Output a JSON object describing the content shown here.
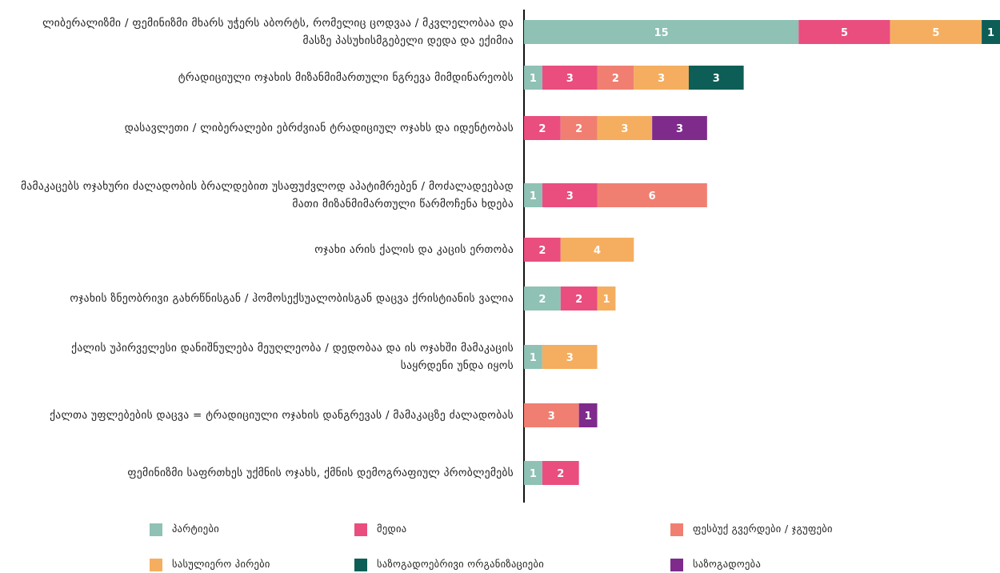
{
  "chart_data": {
    "type": "stacked-bar-horizontal",
    "categories": [
      "ლიბერალიზმი / ფემინიზმი მხარს უჭერს აბორტს, რომელიც ცოდვაა / მკვლელობაა და მასზე პასუხისმგებელი დედა და ექიმია",
      "ტრადიციული ოჯახის მიზანმიმართული ნგრევა მიმდინარეობს",
      "დასავლეთი / ლიბერალები ებრძვიან ტრადიციულ ოჯახს და იდენტობას",
      "მამაკაცებს ოჯახური ძალადობის ბრალდებით უსაფუძვლოდ აპატიმრებენ / მოძალადეებად მათი მიზანმიმართული წარმოჩენა ხდება",
      "ოჯახი არის ქალის და კაცის ერთობა",
      "ოჯახის ზნეობრივი გახრწნისგან / ჰომოსექსუალობისგან დაცვა ქრისტიანის ვალია",
      "ქალის უპირველესი დანიშნულება მეუღლეობა / დედობაა და ის ოჯახში მამაკაცის საყრდენი უნდა იყოს",
      "ქალთა უფლებების დაცვა = ტრადიციული ოჯახის დანგრევას / მამაკაცზე ძალადობას",
      "ფემინიზმი საფრთხეს უქმნის ოჯახს, ქმნის დემოგრაფიულ პრობლემებს"
    ],
    "series": [
      {
        "name": "პარტიები",
        "color": "#8fc1b5",
        "values": [
          15,
          1,
          null,
          1,
          null,
          2,
          1,
          null,
          1
        ]
      },
      {
        "name": "მედია",
        "color": "#e94e7f",
        "values": [
          5,
          3,
          2,
          3,
          2,
          2,
          null,
          null,
          2
        ]
      },
      {
        "name": "ფესბუქ გვერდები / ჯგუფები",
        "color": "#f07f72",
        "values": [
          null,
          2,
          2,
          6,
          null,
          null,
          null,
          3,
          null
        ]
      },
      {
        "name": "სასულიერო პირები",
        "color": "#f5ae5f",
        "values": [
          5,
          3,
          3,
          null,
          4,
          1,
          3,
          null,
          null
        ]
      },
      {
        "name": "საზოგადოებრივი ორგანიზაციები",
        "color": "#0d5e56",
        "values": [
          1,
          3,
          null,
          null,
          null,
          null,
          null,
          null,
          null
        ]
      },
      {
        "name": "საზოგადოება",
        "color": "#7e2b8c",
        "values": [
          null,
          null,
          3,
          null,
          null,
          null,
          null,
          1,
          null
        ]
      }
    ],
    "xlim": [
      0,
      26
    ]
  }
}
